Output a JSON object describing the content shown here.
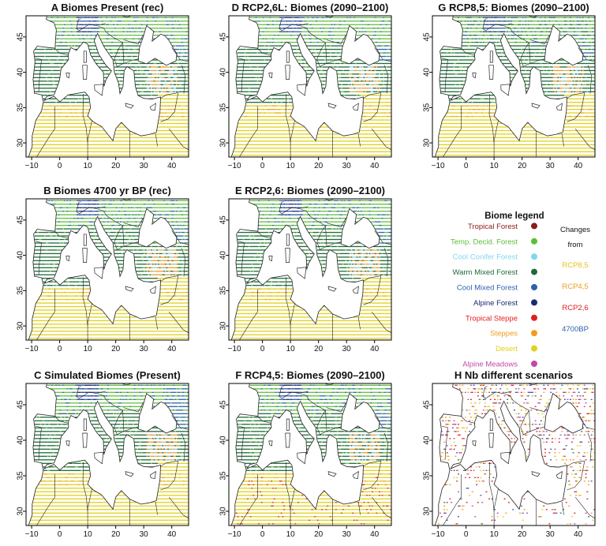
{
  "chart_data": {
    "type": "map-grid",
    "xticks": [
      -10,
      0,
      10,
      20,
      30,
      40
    ],
    "yticks": [
      30,
      35,
      40,
      45
    ],
    "xlim": [
      -12,
      46
    ],
    "ylim": [
      28,
      48
    ],
    "panels": [
      {
        "id": "A",
        "title": "A  Biomes Present (rec)"
      },
      {
        "id": "D",
        "title": "D  RCP2,6L: Biomes (2090–2100)"
      },
      {
        "id": "G",
        "title": "G  RCP8,5: Biomes (2090–2100)"
      },
      {
        "id": "B",
        "title": "B  Biomes 4700 yr BP (rec)"
      },
      {
        "id": "E",
        "title": "E  RCP2,6: Biomes (2090–2100)"
      },
      {
        "id": "C",
        "title": "C  Simulated Biomes (Present)"
      },
      {
        "id": "F",
        "title": "F  RCP4,5: Biomes (2090–2100)"
      },
      {
        "id": "H",
        "title": "H  Nb different scenarios"
      }
    ],
    "legend": {
      "title": "Biome legend",
      "items": [
        {
          "label": "Tropical Forest",
          "color": "#8b1a1a"
        },
        {
          "label": "Temp. Decid. Forest",
          "color": "#5cbf3a"
        },
        {
          "label": "Cool Conifer Forest",
          "color": "#7fd6f0"
        },
        {
          "label": "Warm Mixed Forest",
          "color": "#1f6b3a"
        },
        {
          "label": "Cool Mixed Forest",
          "color": "#2e5fb0"
        },
        {
          "label": "Alpine Forest",
          "color": "#1c2a6e"
        },
        {
          "label": "Tropical Steppe",
          "color": "#e02020"
        },
        {
          "label": "Steppes",
          "color": "#f39a1e"
        },
        {
          "label": "Desert",
          "color": "#e0d21a"
        },
        {
          "label": "Alpine Meadows",
          "color": "#c04aa8"
        }
      ],
      "changes_title_1": "Changes",
      "changes_title_2": "from",
      "changes": [
        {
          "label": "RCP8,5",
          "color": "#e8c21a"
        },
        {
          "label": "RCP4,5",
          "color": "#f39a1e"
        },
        {
          "label": "RCP2,6",
          "color": "#e02020"
        },
        {
          "label": "4700BP",
          "color": "#2e5fb0"
        }
      ]
    }
  }
}
